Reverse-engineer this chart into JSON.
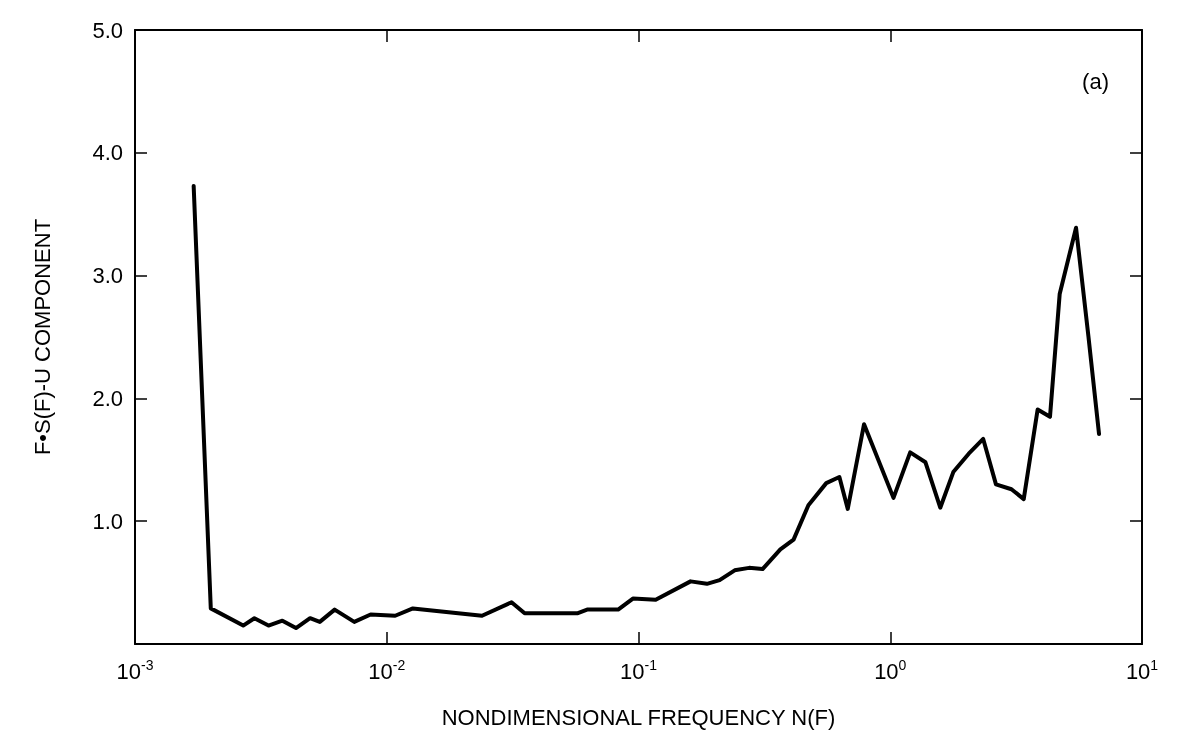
{
  "chart_data": {
    "type": "line",
    "xlabel": "NONDIMENSIONAL FREQUENCY N(F)",
    "ylabel": "F•S(F)-U COMPONENT",
    "annotations": [
      "(a)"
    ],
    "log": "x",
    "xlim": [
      0.001,
      10
    ],
    "xticks": [
      {
        "value": 0.001,
        "label": "10$^{-3}$"
      },
      {
        "value": 0.01,
        "label": "10$^{-2}$"
      },
      {
        "value": 0.1,
        "label": "10$^{-1}$"
      },
      {
        "value": 1,
        "label": "10$^{0}$"
      },
      {
        "value": 10,
        "label": "10$^{1}$"
      }
    ],
    "ylim": [
      0,
      5
    ],
    "yticks": [
      {
        "value": 1,
        "label": "1.0"
      },
      {
        "value": 2,
        "label": "2.0"
      },
      {
        "value": 3,
        "label": "3.0"
      },
      {
        "value": 4,
        "label": "4.0"
      },
      {
        "value": 5,
        "label": "5.0"
      }
    ],
    "grid": false,
    "marker": "none",
    "line_style": "solid",
    "series": [
      {
        "color": "#000000",
        "x": [
          0.00171,
          0.002,
          0.00269,
          0.00298,
          0.00339,
          0.00385,
          0.00436,
          0.00496,
          0.00542,
          0.00621,
          0.00743,
          0.00863,
          0.0108,
          0.0127,
          0.0239,
          0.0313,
          0.0353,
          0.0571,
          0.0625,
          0.083,
          0.095,
          0.117,
          0.161,
          0.187,
          0.21,
          0.241,
          0.275,
          0.311,
          0.366,
          0.413,
          0.473,
          0.557,
          0.628,
          0.678,
          0.787,
          1.03,
          1.2,
          1.38,
          1.58,
          1.78,
          2.05,
          2.34,
          2.63,
          3.03,
          3.39,
          3.85,
          4.31,
          4.71,
          5.47,
          6.13,
          6.75
        ],
        "values": [
          3.73,
          0.29,
          0.15,
          0.21,
          0.15,
          0.19,
          0.13,
          0.21,
          0.18,
          0.28,
          0.18,
          0.24,
          0.23,
          0.29,
          0.23,
          0.34,
          0.25,
          0.25,
          0.28,
          0.28,
          0.37,
          0.36,
          0.51,
          0.49,
          0.52,
          0.6,
          0.62,
          0.61,
          0.77,
          0.85,
          1.13,
          1.31,
          1.36,
          1.1,
          1.79,
          1.19,
          1.56,
          1.48,
          1.11,
          1.4,
          1.55,
          1.67,
          1.3,
          1.26,
          1.18,
          1.91,
          1.85,
          2.85,
          3.39,
          2.5,
          1.71
        ]
      }
    ]
  }
}
